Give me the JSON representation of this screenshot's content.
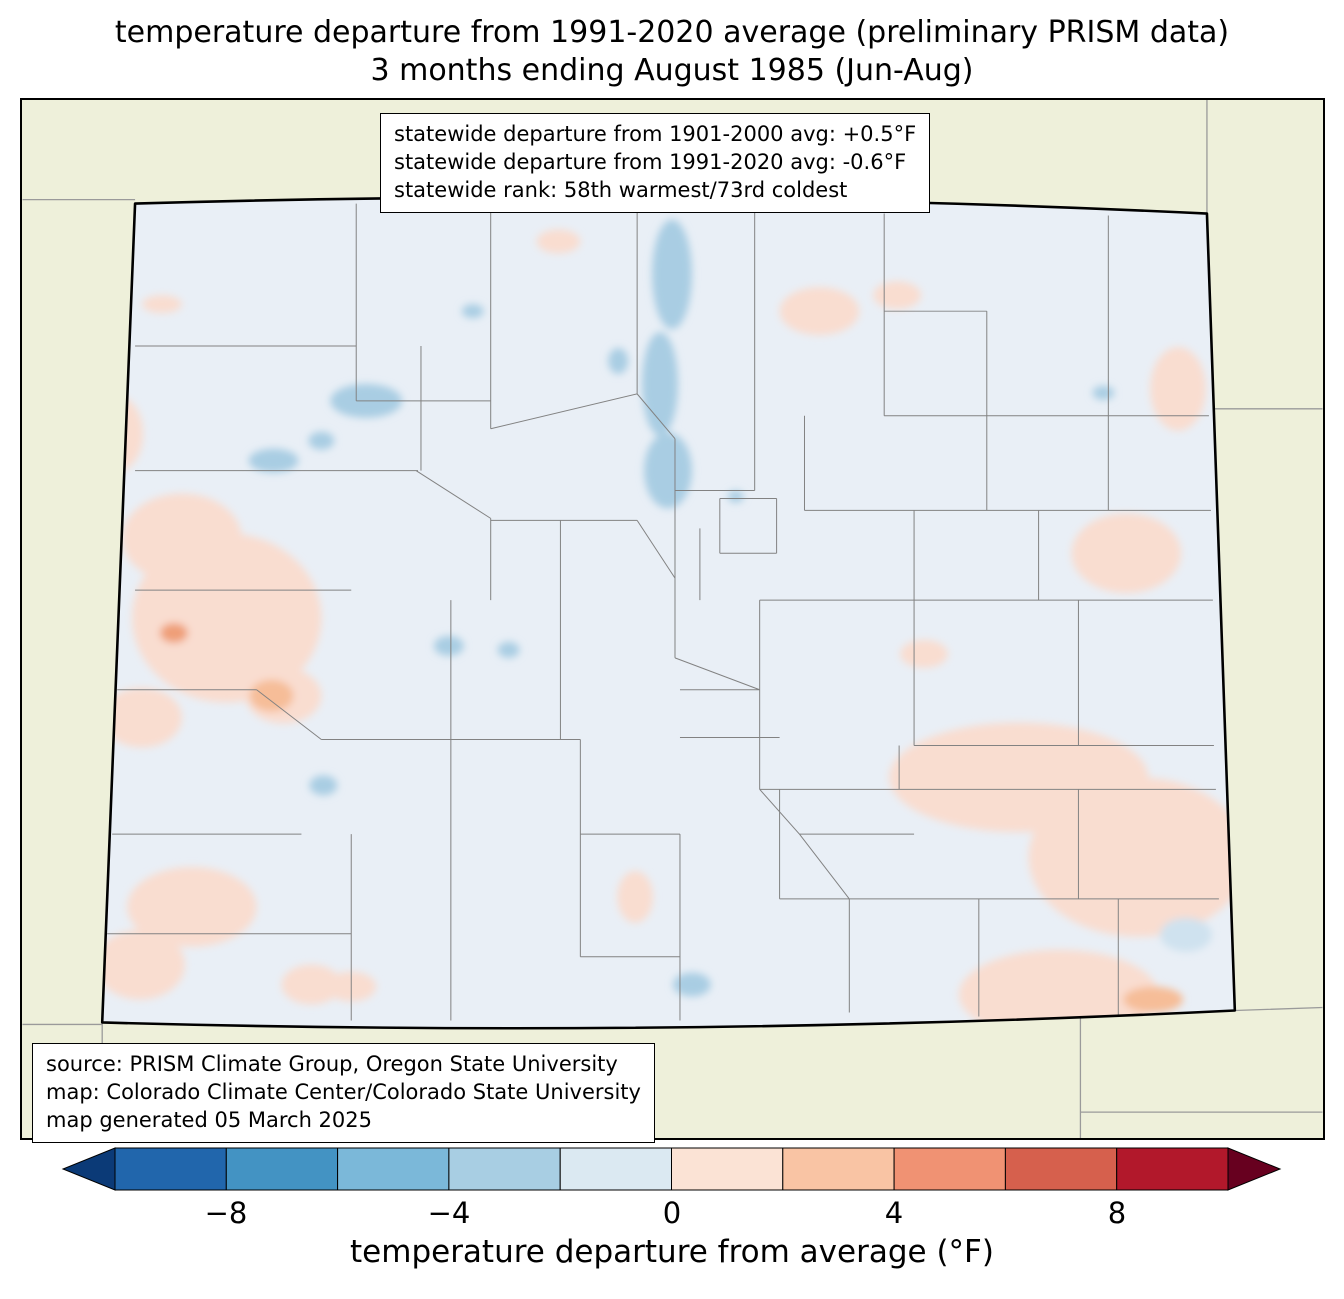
{
  "title": {
    "line1": "temperature departure from 1991-2020 average (preliminary PRISM data)",
    "line2": "3 months ending August 1985 (Jun-Aug)"
  },
  "stats_box": {
    "line1": "statewide departure from 1901-2000 avg: +0.5°F",
    "line2": "statewide departure from 1991-2020 avg: -0.6°F",
    "line3": "statewide rank: 58th warmest/73rd coldest"
  },
  "source_box": {
    "line1": "source: PRISM Climate Group, Oregon State University",
    "line2": "map: Colorado Climate Center/Colorado State University",
    "line3": "map generated 05 March 2025"
  },
  "colorbar": {
    "label": "temperature departure from average (°F)",
    "ticks": [
      "−8",
      "−4",
      "0",
      "4",
      "8"
    ],
    "tick_values": [
      -8,
      -4,
      0,
      4,
      8
    ],
    "range": [
      -10,
      10
    ],
    "colors": [
      "#2166ac",
      "#4393c3",
      "#7bb8d9",
      "#a8cee3",
      "#dbe9f2",
      "#fbe3d5",
      "#f9c4a4",
      "#f09273",
      "#d6604d",
      "#b2182b"
    ],
    "arrow_left_color": "#0b3a77",
    "arrow_right_color": "#67001f"
  },
  "colors": {
    "beige": "#eef0da",
    "state_base": "#e9eff6",
    "county_line": "#828282",
    "warm": "#f9ddd0",
    "warm_mid": "#f6bd98",
    "warm_strong": "#ef9f78",
    "cool": "#a9cde3",
    "cool_soft": "#cfe2ef"
  },
  "map": {
    "region": "Colorado",
    "legend_note": "county boundaries shown; neighboring states unshaded"
  }
}
